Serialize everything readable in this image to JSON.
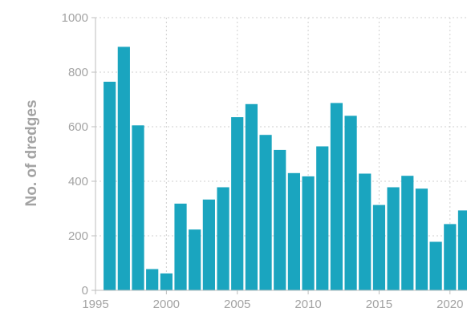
{
  "chart_data": {
    "type": "bar",
    "title": "",
    "xlabel": "",
    "ylabel": "No. of dredges",
    "color": "#1aa5bf",
    "grid": true,
    "ylim": [
      0,
      1000
    ],
    "yticks": [
      0,
      200,
      400,
      600,
      800,
      1000
    ],
    "xticks": [
      1995,
      2000,
      2005,
      2010,
      2015,
      2020
    ],
    "series": [
      {
        "x": [
          1996,
          1997,
          1998,
          1999,
          2000,
          2001,
          2002,
          2003,
          2004,
          2005,
          2006,
          2007,
          2008,
          2009,
          2010,
          2011,
          2012,
          2013,
          2014,
          2015,
          2016,
          2017,
          2018,
          2019,
          2020,
          2021
        ],
        "values": [
          765,
          893,
          605,
          78,
          62,
          318,
          223,
          333,
          378,
          635,
          683,
          570,
          515,
          430,
          418,
          528,
          687,
          640,
          428,
          313,
          378,
          420,
          373,
          178,
          243,
          293
        ]
      }
    ]
  }
}
